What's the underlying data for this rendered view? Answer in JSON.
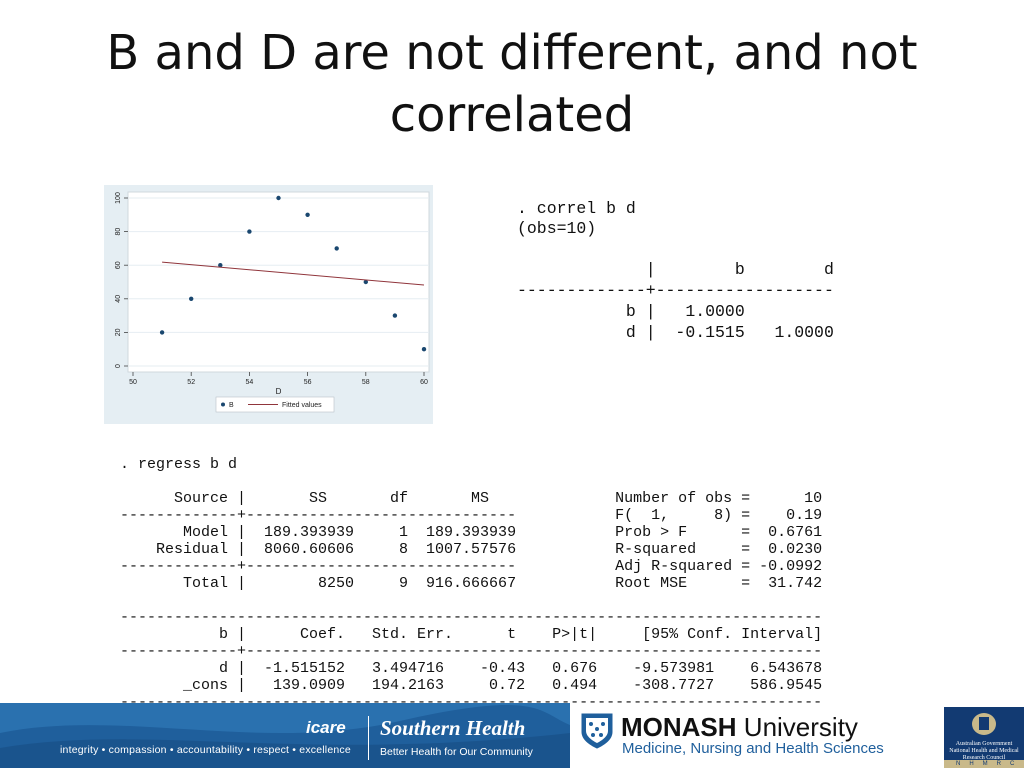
{
  "slide": {
    "title_line1": "B and D are not different, and not",
    "title_line2": "correlated"
  },
  "chart_data": {
    "type": "scatter",
    "xlabel": "D",
    "ylabel": "",
    "xlim": [
      50,
      60
    ],
    "ylim": [
      0,
      100
    ],
    "xticks": [
      50,
      52,
      54,
      56,
      58,
      60
    ],
    "yticks": [
      0,
      20,
      40,
      60,
      80,
      100
    ],
    "grid": true,
    "legend_position": "bottom",
    "series": [
      {
        "name": "B",
        "kind": "scatter",
        "color": "#1a476f",
        "points": [
          [
            51,
            20
          ],
          [
            52,
            40
          ],
          [
            53,
            60
          ],
          [
            54,
            80
          ],
          [
            55,
            100
          ],
          [
            56,
            90
          ],
          [
            57,
            70
          ],
          [
            58,
            50
          ],
          [
            59,
            30
          ],
          [
            60,
            10
          ]
        ]
      },
      {
        "name": "Fitted values",
        "kind": "line",
        "color": "#90353b",
        "points": [
          [
            51,
            61.82
          ],
          [
            60,
            48.18
          ]
        ]
      }
    ]
  },
  "correl": {
    "command": ". correl b d",
    "obs": "(obs=10)",
    "header": "             |        b        d",
    "rule": "-------------+------------------",
    "row_b": "           b |   1.0000",
    "row_d": "           d |  -0.1515   1.0000"
  },
  "regress": {
    "command": ". regress b d",
    "lines": [
      "",
      "      Source |       SS       df       MS              Number of obs =      10",
      "-------------+------------------------------           F(  1,     8) =    0.19",
      "       Model |  189.393939     1  189.393939           Prob > F      =  0.6761",
      "    Residual |  8060.60606     8  1007.57576           R-squared     =  0.0230",
      "-------------+------------------------------           Adj R-squared = -0.0992",
      "       Total |        8250     9  916.666667           Root MSE      =  31.742",
      "",
      "------------------------------------------------------------------------------",
      "           b |      Coef.   Std. Err.      t    P>|t|     [95% Conf. Interval]",
      "-------------+----------------------------------------------------------------",
      "           d |  -1.515152   3.494716    -0.43   0.676    -9.573981    6.543678",
      "       _cons |   139.0909   194.2163     0.72   0.494    -308.7727    586.9545",
      "------------------------------------------------------------------------------"
    ]
  },
  "footer": {
    "tagline": "integrity • compassion • accountability • respect • excellence",
    "icare": "icare",
    "southern_health": "Southern Health",
    "southern_health_sub": "Better Health for Our Community",
    "monash_bold": "MONASH",
    "monash_light": " University",
    "monash_sub": "Medicine, Nursing and Health Sciences",
    "nhmrc_text": "Australian Government National Health and Medical Research Council",
    "nhmrc_letters": "NHMRC",
    "colors": {
      "band": "#1f5f9c",
      "nhmrc": "#123a72"
    }
  }
}
